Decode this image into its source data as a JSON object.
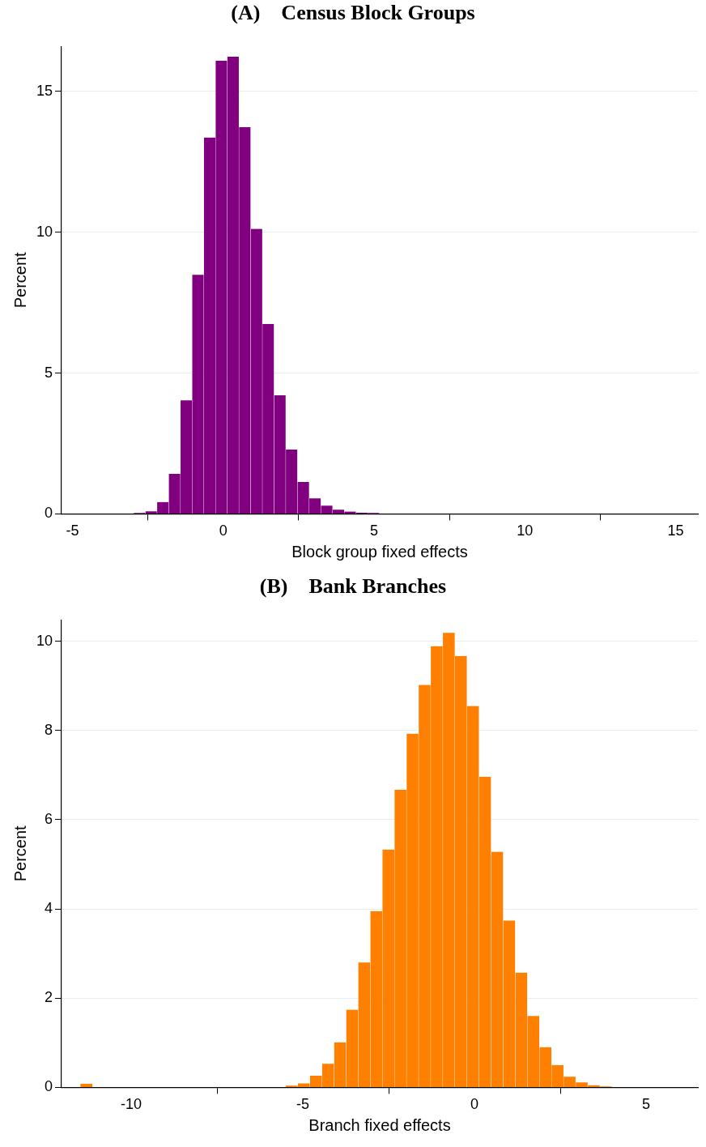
{
  "chart_data": [
    {
      "type": "histogram",
      "title": "(A)    Census Block Groups",
      "xlabel": "Block group fixed effects",
      "ylabel": "Percent",
      "color": "#800080",
      "bins": [
        -2.97,
        -2.582,
        -2.194,
        -1.806,
        -1.418,
        -1.03,
        -0.642,
        -0.254,
        0.134,
        0.522,
        0.91,
        1.298,
        1.686,
        2.074,
        2.462,
        2.85,
        3.238,
        3.626,
        4.014,
        4.402,
        4.79,
        5.178,
        5.566,
        5.954,
        6.342,
        6.73,
        7.118,
        7.506,
        7.894,
        8.282,
        8.67,
        9.058,
        9.446,
        9.834,
        10.222,
        10.61,
        10.998,
        11.386,
        11.774,
        12.162,
        12.55,
        12.938,
        13.326,
        13.714,
        14.102,
        14.49,
        14.878
      ],
      "values": [
        0.03,
        0.09,
        0.42,
        1.42,
        4.03,
        8.49,
        13.36,
        16.09,
        16.23,
        13.73,
        10.12,
        6.74,
        4.21,
        2.28,
        1.13,
        0.55,
        0.29,
        0.15,
        0.08,
        0.04,
        0.03,
        null,
        null,
        0.01,
        0.01,
        0,
        0,
        0,
        0,
        0,
        0,
        0,
        0,
        0,
        0,
        0,
        0.01,
        0.01,
        0.01,
        0.01,
        0.01,
        0.01,
        0.01,
        0,
        0,
        0
      ],
      "xlim": [
        -5.36,
        15.74
      ],
      "ylim": [
        0,
        16.6
      ],
      "xticks": [
        -5,
        0,
        5,
        10,
        15
      ],
      "yticks": [
        0,
        5,
        10,
        15
      ],
      "grid": "y",
      "legend": false
    },
    {
      "type": "histogram",
      "title": "(B)    Bank Branches",
      "xlabel": "Branch fixed effects",
      "ylabel": "Percent",
      "color": "#ff8000",
      "bins": [
        -11.483,
        -11.131,
        -10.779,
        -10.427,
        -10.075,
        -9.723,
        -9.371,
        -9.019,
        -8.667,
        -8.315,
        -7.963,
        -7.611,
        -7.259,
        -6.907,
        -6.555,
        -6.203,
        -5.851,
        -5.499,
        -5.147,
        -4.795,
        -4.443,
        -4.091,
        -3.739,
        -3.387,
        -3.035,
        -2.683,
        -2.331,
        -1.979,
        -1.627,
        -1.275,
        -0.923,
        -0.571,
        -0.219,
        0.133,
        0.485,
        0.837,
        1.189,
        1.541,
        1.893,
        2.245,
        2.597,
        2.949,
        3.301,
        3.653,
        4.005
      ],
      "values": [
        0.08,
        0,
        0,
        0,
        0,
        0,
        0,
        0,
        0,
        0,
        0,
        0,
        0,
        0,
        0,
        0,
        null,
        0.04,
        0.09,
        0.26,
        0.53,
        1.01,
        1.74,
        2.8,
        3.95,
        5.33,
        6.67,
        7.93,
        9.02,
        9.89,
        10.19,
        9.67,
        8.55,
        6.96,
        5.28,
        3.74,
        2.57,
        1.6,
        0.9,
        0.5,
        0.24,
        0.11,
        0.05,
        0.02
      ],
      "xlim": [
        -12.03,
        6.51
      ],
      "ylim": [
        0,
        10.48
      ],
      "xticks": [
        -10,
        -5,
        0,
        5
      ],
      "yticks": [
        0,
        2,
        4,
        6,
        8,
        10
      ],
      "grid": "y",
      "legend": false
    }
  ]
}
